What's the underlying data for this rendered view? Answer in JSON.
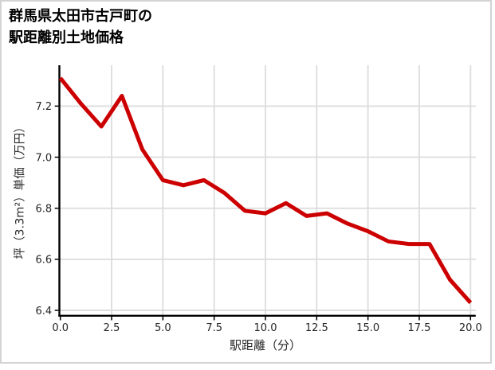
{
  "title": {
    "line1": "群馬県太田市古戸町の",
    "line2": "駅距離別土地価格"
  },
  "chart_data": {
    "type": "line",
    "title": "群馬県太田市古戸町の駅距離別土地価格",
    "xlabel": "駅距離（分）",
    "ylabel": "坪（3.3m²）単価（万円）",
    "x": [
      0,
      1,
      2,
      3,
      4,
      5,
      6,
      7,
      8,
      9,
      10,
      11,
      12,
      13,
      14,
      15,
      16,
      17,
      18,
      19,
      20
    ],
    "y": [
      7.31,
      7.21,
      7.12,
      7.24,
      7.03,
      6.91,
      6.89,
      6.91,
      6.86,
      6.79,
      6.78,
      6.82,
      6.77,
      6.78,
      6.74,
      6.71,
      6.67,
      6.66,
      6.66,
      6.52,
      6.43
    ],
    "x_ticks": [
      0,
      2.5,
      5,
      7.5,
      10,
      12.5,
      15,
      17.5,
      20
    ],
    "x_tick_labels": [
      "0.0",
      "2.5",
      "5.0",
      "7.5",
      "10.0",
      "12.5",
      "15.0",
      "17.5",
      "20.0"
    ],
    "y_ticks": [
      6.4,
      6.6,
      6.8,
      7.0,
      7.2
    ],
    "y_tick_labels": [
      "6.4",
      "6.6",
      "6.8",
      "7.0",
      "7.2"
    ],
    "xlim": [
      0,
      20
    ],
    "ylim": [
      6.38,
      7.36
    ],
    "grid": true,
    "legend": false,
    "line_color": "#CC0000",
    "grid_color": "#DCDCDC",
    "axis_color": "#000000",
    "tick_label_color": "#262626"
  }
}
